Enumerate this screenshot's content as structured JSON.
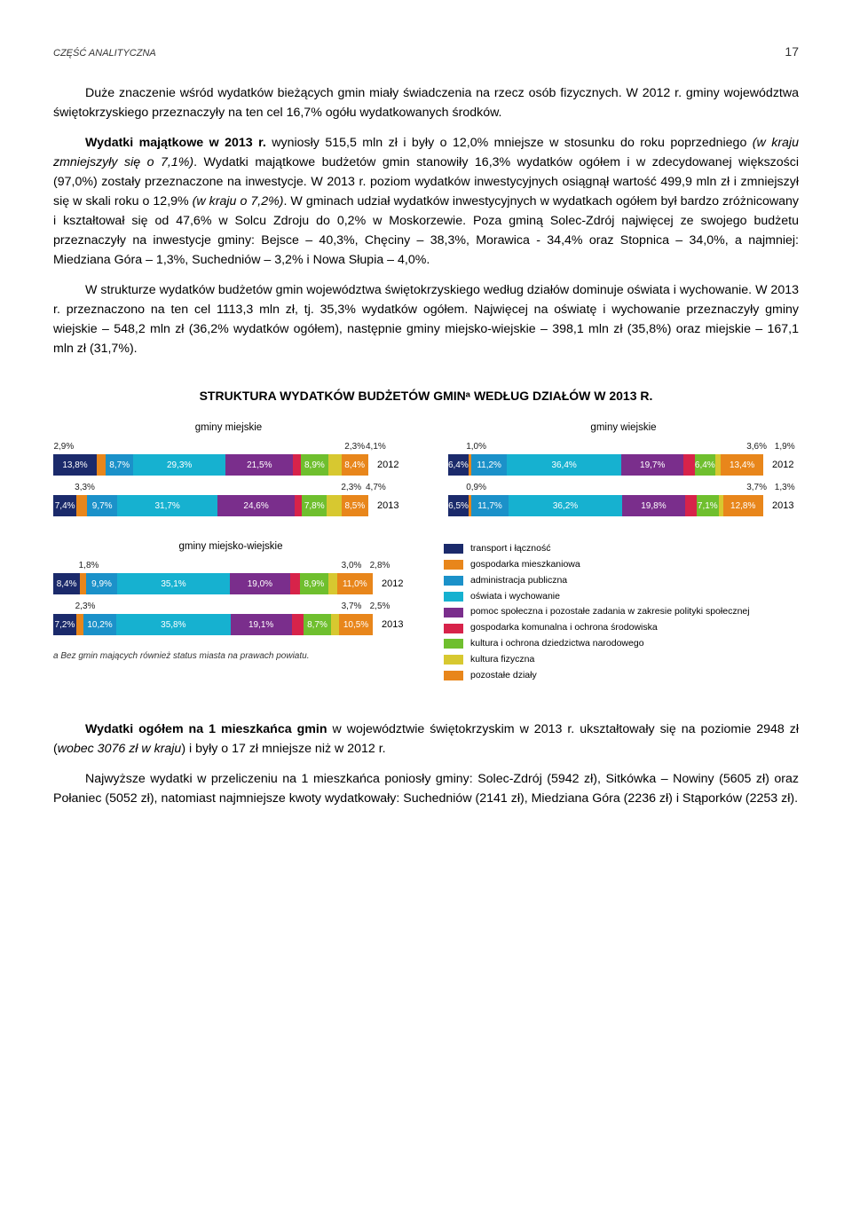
{
  "header": {
    "section": "CZĘŚĆ ANALITYCZNA",
    "page_number": "17"
  },
  "paragraphs": [
    "Duże znaczenie wśród wydatków bieżących gmin miały świadczenia na rzecz osób fizycznych. W 2012 r. gminy województwa świętokrzyskiego przeznaczyły na ten cel 16,7% ogółu wydatkowanych środków.",
    "Wydatki majątkowe w 2013 r. wyniosły 515,5 mln zł i były o 12,0% mniejsze w stosunku do roku poprzedniego (w kraju zmniejszyły się o 7,1%). Wydatki majątkowe budżetów gmin stanowiły 16,3% wydatków ogółem i w zdecydowanej większości (97,0%) zostały przeznaczone na inwestycje. W 2013 r. poziom wydatków inwestycyjnych osiągnął wartość 499,9 mln zł i zmniejszył się w skali roku o 12,9% (w kraju o 7,2%). W gminach udział wydatków inwestycyjnych w wydatkach ogółem był bardzo zróżnicowany i kształtował się od 47,6% w Solcu Zdroju do 0,2% w Moskorzewie. Poza gminą Solec-Zdrój najwięcej ze swojego budżetu przeznaczyły na inwestycje gminy: Bejsce – 40,3%, Chęciny – 38,3%, Morawica - 34,4% oraz Stopnica – 34,0%, a najmniej: Miedziana Góra – 1,3%, Suchedniów – 3,2% i Nowa Słupia – 4,0%.",
    "W strukturze wydatków budżetów gmin województwa świętokrzyskiego według działów dominuje oświata i wychowanie. W 2013 r. przeznaczono na ten cel 1113,3 mln zł, tj. 35,3% wydatków ogółem. Najwięcej na oświatę i wychowanie przeznaczyły gminy wiejskie – 548,2 mln zł (36,2% wydatków ogółem), następnie gminy miejsko-wiejskie – 398,1 mln zł (35,8%) oraz miejskie – 167,1 mln zł (31,7%)."
  ],
  "chart_heading": "STRUKTURA WYDATKÓW BUDŻETÓW GMINᵃ WEDŁUG DZIAŁÓW W 2013 R.",
  "colors": {
    "c1": "#1b2a6b",
    "c2": "#1b91c9",
    "c3": "#16b1d0",
    "c4": "#7a2e8c",
    "c5": "#6fbf2e",
    "c6": "#d7234a",
    "c7": "#d7c830",
    "c8": "#e8861b",
    "text_top": "#222"
  },
  "charts": {
    "miejskie": {
      "title": "gminy miejskie",
      "rows": [
        {
          "year": "2012",
          "top_labels": [
            {
              "v": "2,9%",
              "p": 3
            }
          ],
          "top_labels_r": [
            {
              "v": "2,3%",
              "p": 86
            },
            {
              "v": "4,1%",
              "p": 92
            }
          ],
          "segs": [
            [
              "c1",
              13.8,
              "13,8%"
            ],
            [
              "c2",
              8.7,
              "8,7%"
            ],
            [
              "c3",
              29.3,
              "29,3%"
            ],
            [
              "c4",
              21.5,
              "21,5%"
            ],
            [
              "c5",
              2.9,
              ""
            ],
            [
              "c6",
              8.9,
              "8,9%"
            ],
            [
              "c7",
              2.3,
              ""
            ],
            [
              "c8",
              8.4,
              "8,4%"
            ]
          ],
          "remap": [
            [
              "c1",
              13.8,
              "13,8%"
            ],
            [
              "c2",
              2.9,
              ""
            ],
            [
              "c3",
              8.7,
              "8,7%"
            ],
            [
              "c4",
              29.3,
              "29,3%"
            ],
            [
              "c5",
              21.5,
              "21,5%"
            ],
            [
              "c6",
              2.3,
              ""
            ],
            [
              "c7",
              8.9,
              "8,9%"
            ],
            [
              "c8",
              4.1,
              ""
            ],
            [
              "c9",
              8.4,
              "8,4%"
            ]
          ]
        },
        {
          "year": "2013",
          "top_labels": [
            {
              "v": "3,3%",
              "p": 9
            }
          ],
          "top_labels_r": [
            {
              "v": "2,3%",
              "p": 85
            },
            {
              "v": "4,7%",
              "p": 92
            }
          ],
          "remap": [
            [
              "c1",
              7.4,
              "7,4%"
            ],
            [
              "c2",
              3.3,
              ""
            ],
            [
              "c3",
              9.7,
              "9,7%"
            ],
            [
              "c4",
              31.7,
              "31,7%"
            ],
            [
              "c5",
              24.6,
              "24,6%"
            ],
            [
              "c6",
              2.3,
              ""
            ],
            [
              "c7",
              7.8,
              "7,8%"
            ],
            [
              "c8",
              4.7,
              ""
            ],
            [
              "c9",
              8.5,
              "8,5%"
            ]
          ]
        }
      ]
    },
    "wiejskie": {
      "title": "gminy wiejskie",
      "rows": [
        {
          "year": "2012",
          "top_labels": [
            {
              "v": "1,0%",
              "p": 8
            }
          ],
          "top_labels_r": [
            {
              "v": "3,6%",
              "p": 88
            },
            {
              "v": "1,9%",
              "p": 96
            }
          ],
          "remap": [
            [
              "c1",
              6.4,
              "6,4%"
            ],
            [
              "c2",
              1.0,
              ""
            ],
            [
              "c3",
              11.2,
              "11,2%"
            ],
            [
              "c4",
              36.4,
              "36,4%"
            ],
            [
              "c5",
              19.7,
              "19,7%"
            ],
            [
              "c6",
              3.6,
              ""
            ],
            [
              "c7",
              6.4,
              "6,4%"
            ],
            [
              "c8",
              1.9,
              ""
            ],
            [
              "c9",
              13.4,
              "13,4%"
            ]
          ]
        },
        {
          "year": "2013",
          "top_labels": [
            {
              "v": "0,9%",
              "p": 8
            }
          ],
          "top_labels_r": [
            {
              "v": "3,7%",
              "p": 88
            },
            {
              "v": "1,3%",
              "p": 96
            }
          ],
          "remap": [
            [
              "c1",
              6.5,
              "6,5%"
            ],
            [
              "c2",
              0.9,
              ""
            ],
            [
              "c3",
              11.7,
              "11,7%"
            ],
            [
              "c4",
              36.2,
              "36,2%"
            ],
            [
              "c5",
              19.8,
              "19,8%"
            ],
            [
              "c6",
              3.7,
              ""
            ],
            [
              "c7",
              7.1,
              "7,1%"
            ],
            [
              "c8",
              1.3,
              ""
            ],
            [
              "c9",
              12.8,
              "12,8%"
            ]
          ]
        }
      ]
    },
    "miejsko_wiejskie": {
      "title": "gminy miejsko-wiejskie",
      "rows": [
        {
          "year": "2012",
          "top_labels": [
            {
              "v": "1,8%",
              "p": 10
            }
          ],
          "top_labels_r": [
            {
              "v": "3,0%",
              "p": 84
            },
            {
              "v": "2,8%",
              "p": 92
            }
          ],
          "remap": [
            [
              "c1",
              8.4,
              "8,4%"
            ],
            [
              "c2",
              1.8,
              ""
            ],
            [
              "c3",
              9.9,
              "9,9%"
            ],
            [
              "c4",
              35.1,
              "35,1%"
            ],
            [
              "c5",
              19.0,
              "19,0%"
            ],
            [
              "c6",
              3.0,
              ""
            ],
            [
              "c7",
              8.9,
              "8,9%"
            ],
            [
              "c8",
              2.8,
              ""
            ],
            [
              "c9",
              11.0,
              "11,0%"
            ]
          ]
        },
        {
          "year": "2013",
          "top_labels": [
            {
              "v": "2,3%",
              "p": 9
            }
          ],
          "top_labels_r": [
            {
              "v": "3,7%",
              "p": 84
            },
            {
              "v": "2,5%",
              "p": 92
            }
          ],
          "remap": [
            [
              "c1",
              7.2,
              "7,2%"
            ],
            [
              "c2",
              2.3,
              ""
            ],
            [
              "c3",
              10.2,
              "10,2%"
            ],
            [
              "c4",
              35.8,
              "35,8%"
            ],
            [
              "c5",
              19.1,
              "19,1%"
            ],
            [
              "c6",
              3.7,
              ""
            ],
            [
              "c7",
              8.7,
              "8,7%"
            ],
            [
              "c8",
              2.5,
              ""
            ],
            [
              "c9",
              10.5,
              "10,5%"
            ]
          ]
        }
      ]
    }
  },
  "palette_order": [
    "#1b2a6b",
    "#1b91c9",
    "#16b1d0",
    "#7a2e8c",
    "#d7234a",
    "#6fbf2e",
    "#d7234a",
    "#d7c830",
    "#e8861b"
  ],
  "seg_colors": [
    "#1b2a6b",
    "#e8861b",
    "#1b91c9",
    "#16b1d0",
    "#7a2e8c",
    "#d7234a",
    "#6fbf2e",
    "#d7c830",
    "#e8861b"
  ],
  "legend": [
    {
      "c": "#1b2a6b",
      "t": "transport i łączność"
    },
    {
      "c": "#e8861b",
      "t": "gospodarka mieszkaniowa"
    },
    {
      "c": "#1b91c9",
      "t": "administracja publiczna"
    },
    {
      "c": "#16b1d0",
      "t": "oświata i wychowanie"
    },
    {
      "c": "#7a2e8c",
      "t": "pomoc społeczna i pozostałe zadania w zakresie polityki społecznej"
    },
    {
      "c": "#d7234a",
      "t": "gospodarka komunalna i ochrona środowiska"
    },
    {
      "c": "#6fbf2e",
      "t": "kultura i ochrona dziedzictwa narodowego"
    },
    {
      "c": "#d7c830",
      "t": "kultura fizyczna"
    },
    {
      "c": "#e8861b",
      "t": "pozostałe działy"
    }
  ],
  "legend_colors_actual": [
    "#1b2a6b",
    "#e8861b",
    "#1b91c9",
    "#16b1d0",
    "#7a2e8c",
    "#d7234a",
    "#6fbf2e",
    "#d7c830",
    "#e8861b"
  ],
  "footnote": "a Bez gmin mających również status miasta na prawach powiatu.",
  "closing_paragraphs": [
    "Wydatki ogółem na 1 mieszkańca gmin w województwie świętokrzyskim w 2013 r. ukształtowały się na poziomie 2948 zł (wobec 3076 zł w kraju) i były o 17 zł mniejsze niż w 2012 r.",
    "Najwyższe wydatki w przeliczeniu na 1 mieszkańca poniosły gminy: Solec-Zdrój (5942 zł), Sitkówka – Nowiny (5605 zł) oraz Połaniec (5052 zł), natomiast najmniejsze kwoty wydatkowały: Suchedniów (2141 zł), Miedziana Góra (2236 zł) i Stąporków (2253 zł)."
  ]
}
